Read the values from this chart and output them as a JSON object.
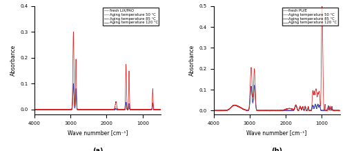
{
  "panel_a": {
    "title": "(a)",
    "xlabel": "Wave nummber [cm⁻¹]",
    "ylabel": "Absorbance",
    "xlim": [
      4000,
      500
    ],
    "ylim": [
      -0.02,
      0.4
    ],
    "yticks": [
      0.0,
      0.1,
      0.2,
      0.3,
      0.4
    ],
    "xticks": [
      4000,
      3000,
      2000,
      1000
    ],
    "legend_labels": [
      "fresh LiX/PAO",
      "Aging temperature 50 °C",
      "Aging temperature 85 °C",
      "Aging temperature 120 °C"
    ],
    "colors": [
      "#888888",
      "#44cc44",
      "#4444cc",
      "#dd2222"
    ]
  },
  "panel_b": {
    "title": "(b)",
    "xlabel": "Wave nummber [cm⁻¹]",
    "ylabel": "Absorbance",
    "xlim": [
      4000,
      500
    ],
    "ylim": [
      -0.02,
      0.5
    ],
    "yticks": [
      0.0,
      0.1,
      0.2,
      0.3,
      0.4,
      0.5
    ],
    "xticks": [
      4000,
      3000,
      2000,
      1000
    ],
    "legend_labels": [
      "fresh PU/E",
      "Aging temperature 50 °C",
      "Aging temperature 85 °C",
      "Aging temperature 120 °C"
    ],
    "colors": [
      "#888888",
      "#44cc44",
      "#4444cc",
      "#dd2222"
    ]
  }
}
